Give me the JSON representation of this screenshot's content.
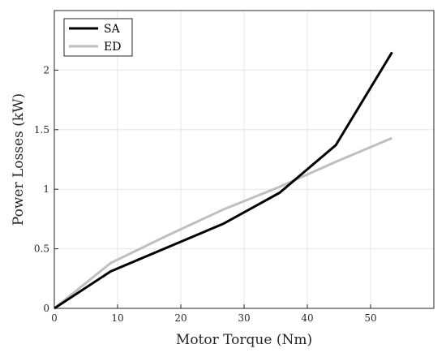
{
  "chart_data": {
    "type": "line",
    "xlabel": "Motor Torque (Nm)",
    "ylabel": "Power Losses (kW)",
    "xlim": [
      0,
      60
    ],
    "ylim": [
      0,
      2.5
    ],
    "xticks": [
      0,
      10,
      20,
      30,
      40,
      50
    ],
    "yticks": [
      0,
      0.5,
      1,
      1.5,
      2
    ],
    "xtick_labels": [
      "0",
      "10",
      "20",
      "30",
      "40",
      "50"
    ],
    "ytick_labels": [
      "0",
      "0.5",
      "1",
      "1.5",
      "2"
    ],
    "grid": true,
    "legend_position": "top-left",
    "series": [
      {
        "name": "SA",
        "color": "#000000",
        "x": [
          0,
          8.9,
          17.8,
          26.7,
          35.6,
          44.5,
          53.4
        ],
        "y": [
          0,
          0.31,
          0.51,
          0.71,
          0.97,
          1.37,
          2.15
        ]
      },
      {
        "name": "ED",
        "color": "#bfbfbf",
        "x": [
          0,
          8.9,
          17.8,
          26.7,
          35.6,
          44.5,
          53.4
        ],
        "y": [
          0,
          0.38,
          0.61,
          0.83,
          1.02,
          1.23,
          1.43
        ]
      }
    ]
  }
}
